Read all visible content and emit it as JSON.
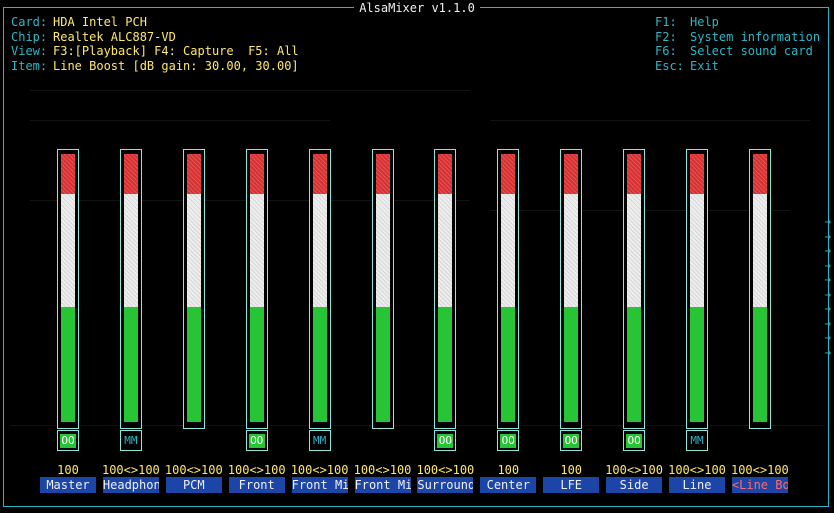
{
  "app": {
    "title": "AlsaMixer v1.1.0"
  },
  "info": {
    "card_key": "Card:",
    "card_val": "HDA Intel PCH",
    "chip_key": "Chip:",
    "chip_val": "Realtek ALC887-VD",
    "view_key": "View:",
    "view_val": "F3:[Playback] F4: Capture  F5: All",
    "item_key": "Item:",
    "item_val": "Line Boost [dB gain: 30.00, 30.00]"
  },
  "keys": [
    {
      "key": "F1:",
      "label": "Help"
    },
    {
      "key": "F2:",
      "label": "System information"
    },
    {
      "key": "F6:",
      "label": "Select sound card"
    },
    {
      "key": "Esc:",
      "label": "Exit"
    }
  ],
  "channels": [
    {
      "name": "Master",
      "value": "100",
      "level": 1.0,
      "switch": "OO",
      "switch_on": true
    },
    {
      "name": "Headphon",
      "value": "100<>100",
      "level": 1.0,
      "switch": "MM",
      "switch_on": false
    },
    {
      "name": "PCM",
      "value": "100<>100",
      "level": 1.0,
      "switch": "",
      "switch_on": null
    },
    {
      "name": "Front",
      "value": "100<>100",
      "level": 1.0,
      "switch": "OO",
      "switch_on": true
    },
    {
      "name": "Front Mi",
      "value": "100<>100",
      "level": 1.0,
      "switch": "MM",
      "switch_on": false
    },
    {
      "name": "Front Mi",
      "value": "100<>100",
      "level": 1.0,
      "switch": "",
      "switch_on": null
    },
    {
      "name": "Surround",
      "value": "100<>100",
      "level": 1.0,
      "switch": "OO",
      "switch_on": true
    },
    {
      "name": "Center",
      "value": "100",
      "level": 1.0,
      "switch": "OO",
      "switch_on": true
    },
    {
      "name": "LFE",
      "value": "100",
      "level": 1.0,
      "switch": "OO",
      "switch_on": true
    },
    {
      "name": "Side",
      "value": "100<>100",
      "level": 1.0,
      "switch": "OO",
      "switch_on": true
    },
    {
      "name": "Line",
      "value": "100<>100",
      "level": 1.0,
      "switch": "MM",
      "switch_on": false
    },
    {
      "name": "<Line Boo>",
      "value": "100<>100",
      "level": 1.0,
      "switch": "",
      "switch_on": null,
      "selected": true
    }
  ],
  "colors": {
    "border": "#2cb7c6",
    "info_value": "#ffe86a",
    "bar_red": "#d83030",
    "bar_white": "#eeeeee",
    "bar_green": "#27c435",
    "name_bg": "#1c45a8",
    "selected_name": "#ff6a6a"
  }
}
